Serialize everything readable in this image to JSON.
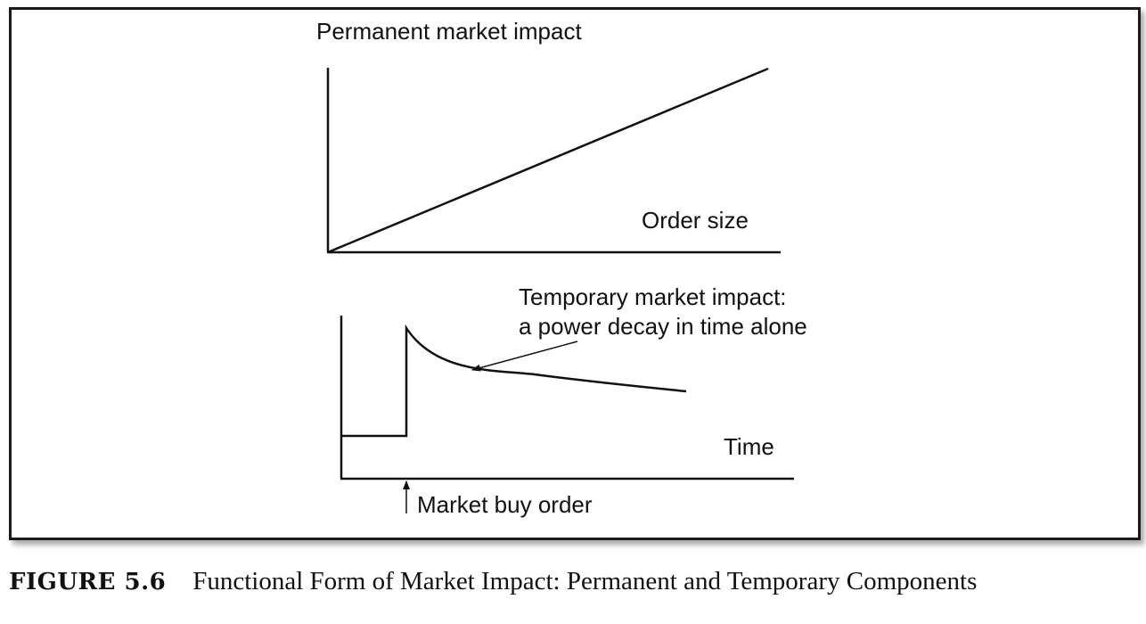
{
  "permanent_panel": {
    "y_label": "Permanent market impact",
    "x_label": "Order size"
  },
  "temporary_panel": {
    "annotation_line1": "Temporary market impact:",
    "annotation_line2": "a power decay in time alone",
    "x_label": "Time",
    "event_label": "Market buy order"
  },
  "caption": {
    "number": "FIGURE 5.6",
    "title": "Functional Form of Market Impact: Permanent and Temporary Components"
  },
  "colors": {
    "ink": "#111111",
    "frame": "#1a1a1a",
    "background": "#ffffff"
  }
}
